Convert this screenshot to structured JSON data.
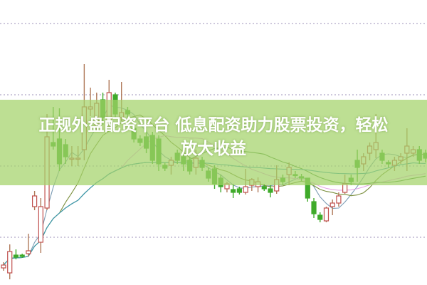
{
  "title": {
    "line1": "正规外盘配资平台 低息配资助力股票投资，轻松",
    "line2": "放大收益"
  },
  "colors": {
    "up": "#d9534f",
    "down": "#3faa2a",
    "grid": "#b0a6c8",
    "banner": "#a3d269",
    "ma": [
      "#7d9db5",
      "#7b8f3d",
      "#e6a4e6",
      "#4f8f3a",
      "#3a9bb5"
    ]
  },
  "chart_data": {
    "type": "candlestick",
    "grid": true,
    "gridlines": [
      1,
      2,
      3,
      4
    ],
    "ylim": [
      0.33,
      4.33
    ],
    "moving_averages": [
      5,
      10,
      20,
      30,
      60
    ],
    "candles_ochl": [
      [
        0.57,
        0.61,
        0.65,
        0.53
      ],
      [
        0.5,
        0.8,
        0.9,
        0.41
      ],
      [
        0.75,
        0.72,
        0.83,
        0.69
      ],
      [
        0.75,
        0.73,
        0.77,
        0.71
      ],
      [
        0.77,
        0.81,
        1.05,
        0.73
      ],
      [
        1.43,
        1.58,
        1.65,
        1.38
      ],
      [
        0.93,
        1.43,
        1.55,
        0.78
      ],
      [
        1.41,
        2.41,
        2.73,
        1.38
      ],
      [
        2.33,
        2.28,
        2.83,
        2.23
      ],
      [
        2.38,
        2.03,
        2.81,
        1.93
      ],
      [
        2.3,
        2.13,
        2.38,
        2.03
      ],
      [
        2.11,
        2.11,
        2.28,
        2.0
      ],
      [
        2.11,
        2.11,
        2.28,
        2.0
      ],
      [
        2.23,
        2.83,
        3.43,
        2.08
      ],
      [
        2.8,
        2.83,
        3.1,
        2.7
      ],
      [
        2.58,
        2.88,
        3.03,
        2.48
      ],
      [
        2.93,
        2.68,
        3.03,
        2.58
      ],
      [
        2.63,
        3.03,
        3.21,
        2.53
      ],
      [
        3.0,
        2.73,
        3.03,
        2.68
      ],
      [
        2.68,
        2.75,
        3.18,
        2.63
      ],
      [
        2.78,
        2.73,
        2.83,
        2.68
      ],
      [
        2.53,
        2.38,
        2.58,
        2.33
      ],
      [
        2.38,
        2.33,
        2.43,
        2.28
      ],
      [
        2.41,
        2.25,
        2.48,
        2.18
      ],
      [
        2.43,
        2.08,
        2.48,
        2.03
      ],
      [
        2.38,
        2.03,
        2.43,
        1.93
      ],
      [
        2.01,
        1.97,
        2.05,
        1.93
      ],
      [
        2.01,
        2.08,
        2.13,
        1.88
      ],
      [
        2.18,
        2.08,
        2.23,
        2.03
      ],
      [
        2.13,
        2.03,
        2.23,
        1.93
      ],
      [
        2.08,
        1.93,
        2.13,
        1.88
      ],
      [
        1.98,
        2.11,
        2.23,
        1.88
      ],
      [
        2.08,
        1.98,
        2.13,
        1.93
      ],
      [
        1.93,
        1.83,
        1.98,
        1.78
      ],
      [
        1.96,
        1.75,
        2.01,
        1.68
      ],
      [
        1.83,
        1.71,
        1.88,
        1.63
      ],
      [
        1.68,
        1.75,
        1.78,
        1.63
      ],
      [
        1.67,
        1.63,
        1.75,
        1.55
      ],
      [
        1.68,
        1.63,
        1.71,
        1.6
      ],
      [
        1.63,
        1.71,
        1.96,
        1.6
      ],
      [
        1.73,
        1.81,
        1.83,
        1.65
      ],
      [
        1.71,
        1.78,
        1.84,
        1.63
      ],
      [
        1.71,
        1.68,
        1.75,
        1.65
      ],
      [
        1.68,
        1.63,
        1.73,
        1.56
      ],
      [
        1.65,
        1.81,
        2.01,
        1.61
      ],
      [
        1.83,
        1.78,
        1.88,
        1.73
      ],
      [
        1.88,
        1.98,
        2.05,
        1.73
      ],
      [
        1.88,
        1.87,
        1.93,
        1.83
      ],
      [
        1.85,
        1.83,
        1.89,
        1.78
      ],
      [
        1.83,
        1.55,
        1.83,
        1.5
      ],
      [
        1.5,
        1.33,
        1.55,
        1.27
      ],
      [
        1.31,
        1.25,
        1.35,
        1.21
      ],
      [
        1.23,
        1.41,
        1.43,
        1.21
      ],
      [
        1.43,
        1.48,
        1.53,
        1.31
      ],
      [
        1.48,
        1.58,
        1.63,
        1.43
      ],
      [
        1.63,
        1.75,
        1.88,
        1.61
      ],
      [
        1.83,
        1.78,
        1.88,
        1.73
      ],
      [
        2.08,
        1.98,
        2.23,
        1.78
      ],
      [
        2.03,
        2.13,
        2.18,
        1.93
      ],
      [
        2.18,
        2.28,
        2.33,
        2.08
      ],
      [
        2.23,
        2.33,
        2.73,
        2.11
      ],
      [
        2.18,
        2.08,
        2.23,
        2.03
      ],
      [
        2.05,
        2.03,
        2.08,
        1.98
      ],
      [
        2.01,
        2.08,
        2.13,
        1.93
      ],
      [
        2.08,
        2.13,
        2.18,
        2.03
      ],
      [
        2.18,
        2.28,
        2.53,
        1.93
      ],
      [
        2.18,
        2.23,
        2.28,
        2.13
      ],
      [
        2.23,
        2.08,
        2.28,
        2.03
      ],
      [
        2.18,
        2.11,
        2.23,
        2.05
      ]
    ]
  }
}
